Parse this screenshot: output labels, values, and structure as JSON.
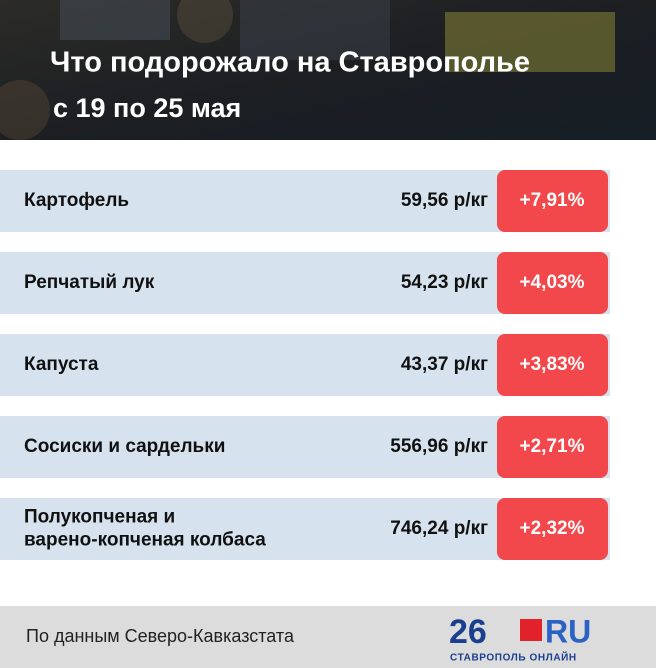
{
  "header": {
    "title": "Что подорожало на Ставрополье",
    "subtitle": "с 19 по 25 мая"
  },
  "table": {
    "rows": [
      {
        "name": [
          "Картофель"
        ],
        "price": "59,56 р/кг",
        "change": "+7,91%"
      },
      {
        "name": [
          "Репчатый лук"
        ],
        "price": "54,23 р/кг",
        "change": "+4,03%"
      },
      {
        "name": [
          "Капуста"
        ],
        "price": "43,37 р/кг",
        "change": "+3,83%"
      },
      {
        "name": [
          "Сосиски и сардельки"
        ],
        "price": "556,96 р/кг",
        "change": "+2,71%"
      },
      {
        "name": [
          "Полукопченая и",
          "варено-копченая колбаса"
        ],
        "price": "746,24 р/кг",
        "change": "+2,32%"
      }
    ]
  },
  "footer": {
    "source": "По данным Северо-Кавказстата"
  },
  "logo": {
    "number": "26",
    "suffix": "RU",
    "tagline": "СТАВРОПОЛЬ ОНЛАЙН"
  }
}
